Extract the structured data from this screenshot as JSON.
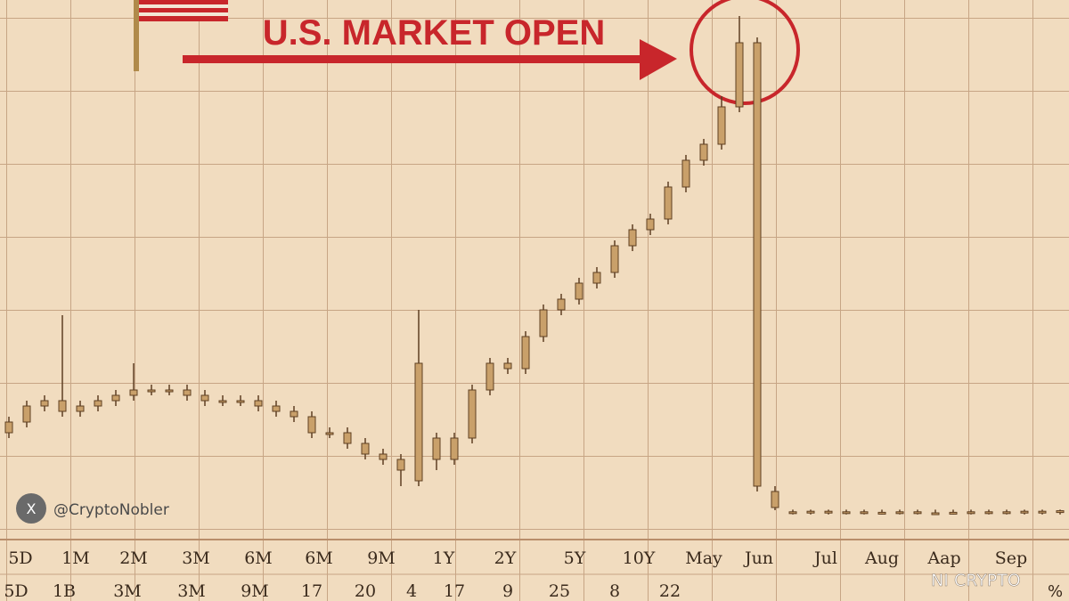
{
  "chart_data": {
    "type": "candlestick",
    "title": "U.S. MARKET OPEN",
    "handle": "@CryptoNobler",
    "watermark": "NI CRYPTO",
    "corner_label": "%",
    "x_labels_top": [
      "5D",
      "1M",
      "2M",
      "3M",
      "6M",
      "6M",
      "9M",
      "1Y",
      "2Y",
      "5Y",
      "10Y",
      "May",
      "Jun",
      "Jul",
      "Aug",
      "Aap",
      "Sep"
    ],
    "x_labels_bottom": [
      "5D",
      "1B",
      "3M",
      "3M",
      "9M",
      "17",
      "20",
      "4",
      "17",
      "9",
      "25",
      "8",
      "22"
    ],
    "ylim": [
      0,
      100
    ],
    "color": "#c9a06a",
    "edge_color": "#5e3f22",
    "highlight_color": "#c8262b",
    "open": [
      19,
      21,
      24,
      25,
      23,
      24,
      25,
      26,
      27,
      27,
      27,
      26,
      25,
      25,
      25,
      24,
      23,
      22,
      19,
      19,
      17,
      15,
      14,
      10,
      18,
      14,
      18,
      27,
      32,
      31,
      37,
      42,
      44,
      47,
      49,
      54,
      57,
      59,
      65,
      70,
      73,
      80,
      92,
      8,
      4.1,
      4.2,
      4.3,
      4.1,
      4.2,
      4,
      4.1,
      4.2,
      3.9,
      4,
      4.1,
      4.2,
      4.1,
      4.2,
      4.3,
      4.3
    ],
    "high": [
      22,
      25,
      26,
      41,
      25,
      26,
      27,
      32,
      28,
      28,
      28,
      27,
      26,
      26,
      26,
      25,
      24,
      23,
      20,
      20,
      18,
      16,
      15,
      42,
      19,
      19,
      28,
      33,
      33,
      38,
      43,
      45,
      48,
      50,
      55,
      58,
      60,
      66,
      71,
      74,
      82,
      97,
      93,
      9,
      4.6,
      4.6,
      4.6,
      4.6,
      4.6,
      4.6,
      4.6,
      4.6,
      4.6,
      4.6,
      4.6,
      4.6,
      4.6,
      4.6,
      4.6,
      4.6
    ],
    "low": [
      18,
      20,
      23,
      22,
      22,
      23,
      24,
      25,
      26,
      26,
      25,
      24,
      24,
      24,
      23,
      22,
      21,
      18,
      18,
      16,
      14,
      13,
      9,
      9,
      12,
      13,
      17,
      26,
      30,
      30,
      36,
      41,
      43,
      46,
      48,
      53,
      56,
      58,
      64,
      69,
      72,
      79,
      8,
      4.5,
      3.7,
      3.7,
      3.7,
      3.7,
      3.7,
      3.7,
      3.7,
      3.7,
      3.7,
      3.7,
      3.7,
      3.7,
      3.7,
      3.7,
      3.7,
      3.7
    ],
    "close": [
      21,
      24,
      25,
      23,
      24,
      25,
      26,
      27,
      27,
      27,
      26,
      25,
      25,
      25,
      24,
      23,
      22,
      19,
      19,
      17,
      15,
      14,
      12,
      32,
      14,
      18,
      27,
      32,
      31,
      37,
      42,
      44,
      47,
      49,
      54,
      57,
      59,
      65,
      70,
      73,
      80,
      92,
      9,
      5,
      4.2,
      4.3,
      4.1,
      4.2,
      4,
      4.1,
      4.2,
      3.9,
      4,
      4.1,
      4.2,
      4.1,
      4.2,
      4.3,
      4.3,
      4.4
    ]
  }
}
